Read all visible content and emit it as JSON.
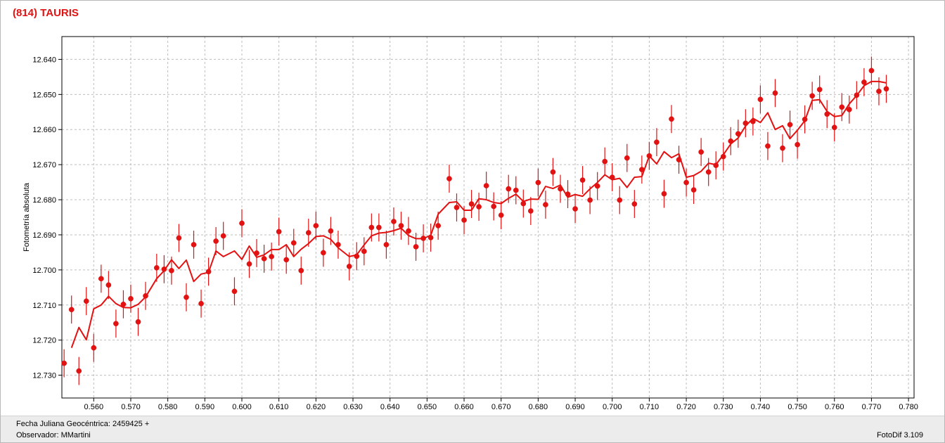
{
  "header": {
    "title": "(814) TAURIS"
  },
  "footer": {
    "date_line": "Fecha Juliana Geocéntrica: 2459425 +",
    "observer_line": "Observador: MMartini",
    "software": "FotoDif 3.109"
  },
  "colors": {
    "series": "#e31212",
    "grid": "#bdbdbd",
    "title": "#e31212"
  },
  "chart_data": {
    "type": "scatter",
    "title": "(814) TAURIS",
    "xlabel": "",
    "ylabel": "Fotometría absoluta",
    "xlim": [
      0.5514,
      0.7815
    ],
    "ylim": [
      12.7365,
      12.6335
    ],
    "y_inverted": true,
    "grid": true,
    "legend": "none",
    "x_ticks": [
      "0.560",
      "0.570",
      "0.580",
      "0.590",
      "0.600",
      "0.610",
      "0.620",
      "0.630",
      "0.640",
      "0.650",
      "0.660",
      "0.670",
      "0.680",
      "0.690",
      "0.700",
      "0.710",
      "0.720",
      "0.730",
      "0.740",
      "0.750",
      "0.760",
      "0.770",
      "0.780"
    ],
    "y_ticks": [
      "12.640",
      "12.650",
      "12.660",
      "12.670",
      "12.680",
      "12.690",
      "12.700",
      "12.710",
      "12.720",
      "12.730"
    ],
    "error_bar": 0.004,
    "series": [
      {
        "kind": "points_with_errorbars",
        "points": [
          [
            0.552,
            12.7266
          ],
          [
            0.554,
            12.7113
          ],
          [
            0.556,
            12.7288
          ],
          [
            0.558,
            12.7089
          ],
          [
            0.56,
            12.7222
          ],
          [
            0.562,
            12.7025
          ],
          [
            0.564,
            12.7043
          ],
          [
            0.566,
            12.7153
          ],
          [
            0.568,
            12.7098
          ],
          [
            0.57,
            12.7082
          ],
          [
            0.572,
            12.7148
          ],
          [
            0.574,
            12.7074
          ],
          [
            0.577,
            12.6994
          ],
          [
            0.579,
            12.6998
          ],
          [
            0.581,
            12.7002
          ],
          [
            0.583,
            12.6909
          ],
          [
            0.585,
            12.7078
          ],
          [
            0.587,
            12.6928
          ],
          [
            0.589,
            12.7096
          ],
          [
            0.591,
            12.7005
          ],
          [
            0.593,
            12.6918
          ],
          [
            0.595,
            12.6903
          ],
          [
            0.598,
            12.7061
          ],
          [
            0.6,
            12.6867
          ],
          [
            0.602,
            12.6983
          ],
          [
            0.604,
            12.6952
          ],
          [
            0.606,
            12.6968
          ],
          [
            0.608,
            12.6962
          ],
          [
            0.61,
            12.6891
          ],
          [
            0.612,
            12.6971
          ],
          [
            0.614,
            12.6923
          ],
          [
            0.616,
            12.7002
          ],
          [
            0.618,
            12.6894
          ],
          [
            0.62,
            12.6874
          ],
          [
            0.622,
            12.6951
          ],
          [
            0.624,
            12.6889
          ],
          [
            0.626,
            12.6928
          ],
          [
            0.629,
            12.699
          ],
          [
            0.631,
            12.6961
          ],
          [
            0.633,
            12.6947
          ],
          [
            0.635,
            12.6879
          ],
          [
            0.637,
            12.6879
          ],
          [
            0.639,
            12.6928
          ],
          [
            0.641,
            12.6862
          ],
          [
            0.643,
            12.6874
          ],
          [
            0.645,
            12.6889
          ],
          [
            0.647,
            12.6934
          ],
          [
            0.649,
            12.691
          ],
          [
            0.651,
            12.6908
          ],
          [
            0.653,
            12.6874
          ],
          [
            0.656,
            12.674
          ],
          [
            0.658,
            12.6822
          ],
          [
            0.66,
            12.6858
          ],
          [
            0.662,
            12.6812
          ],
          [
            0.664,
            12.682
          ],
          [
            0.666,
            12.676
          ],
          [
            0.668,
            12.6819
          ],
          [
            0.67,
            12.6844
          ],
          [
            0.672,
            12.6769
          ],
          [
            0.674,
            12.6773
          ],
          [
            0.676,
            12.6811
          ],
          [
            0.678,
            12.6832
          ],
          [
            0.68,
            12.6751
          ],
          [
            0.682,
            12.6814
          ],
          [
            0.684,
            12.6721
          ],
          [
            0.686,
            12.6769
          ],
          [
            0.688,
            12.6784
          ],
          [
            0.69,
            12.6826
          ],
          [
            0.692,
            12.6744
          ],
          [
            0.694,
            12.6801
          ],
          [
            0.696,
            12.6761
          ],
          [
            0.698,
            12.6691
          ],
          [
            0.7,
            12.6736
          ],
          [
            0.702,
            12.6801
          ],
          [
            0.704,
            12.6681
          ],
          [
            0.706,
            12.6812
          ],
          [
            0.708,
            12.6714
          ],
          [
            0.71,
            12.6675
          ],
          [
            0.712,
            12.6636
          ],
          [
            0.714,
            12.6783
          ],
          [
            0.716,
            12.657
          ],
          [
            0.718,
            12.6686
          ],
          [
            0.72,
            12.6751
          ],
          [
            0.722,
            12.6772
          ],
          [
            0.724,
            12.6664
          ],
          [
            0.726,
            12.6721
          ],
          [
            0.728,
            12.6702
          ],
          [
            0.73,
            12.6677
          ],
          [
            0.732,
            12.6633
          ],
          [
            0.734,
            12.6612
          ],
          [
            0.736,
            12.6582
          ],
          [
            0.738,
            12.6577
          ],
          [
            0.74,
            12.6514
          ],
          [
            0.742,
            12.6647
          ],
          [
            0.744,
            12.6496
          ],
          [
            0.746,
            12.6653
          ],
          [
            0.748,
            12.6586
          ],
          [
            0.75,
            12.6643
          ],
          [
            0.752,
            12.6571
          ],
          [
            0.754,
            12.6504
          ],
          [
            0.756,
            12.6486
          ],
          [
            0.758,
            12.6556
          ],
          [
            0.76,
            12.6594
          ],
          [
            0.762,
            12.6536
          ],
          [
            0.764,
            12.6543
          ],
          [
            0.766,
            12.6502
          ],
          [
            0.768,
            12.6465
          ],
          [
            0.77,
            12.6432
          ],
          [
            0.772,
            12.6491
          ],
          [
            0.774,
            12.6484
          ]
        ]
      },
      {
        "kind": "line",
        "points": [
          [
            0.554,
            12.7222
          ],
          [
            0.556,
            12.7164
          ],
          [
            0.558,
            12.7199
          ],
          [
            0.56,
            12.7111
          ],
          [
            0.562,
            12.71
          ],
          [
            0.564,
            12.7075
          ],
          [
            0.566,
            12.7096
          ],
          [
            0.568,
            12.7107
          ],
          [
            0.57,
            12.7108
          ],
          [
            0.572,
            12.7098
          ],
          [
            0.574,
            12.7077
          ],
          [
            0.577,
            12.7025
          ],
          [
            0.579,
            12.7002
          ],
          [
            0.581,
            12.6971
          ],
          [
            0.583,
            12.6996
          ],
          [
            0.585,
            12.6972
          ],
          [
            0.587,
            12.7033
          ],
          [
            0.589,
            12.7012
          ],
          [
            0.591,
            12.7007
          ],
          [
            0.593,
            12.6946
          ],
          [
            0.595,
            12.6962
          ],
          [
            0.598,
            12.6946
          ],
          [
            0.6,
            12.697
          ],
          [
            0.602,
            12.6932
          ],
          [
            0.604,
            12.6964
          ],
          [
            0.606,
            12.6957
          ],
          [
            0.608,
            12.6942
          ],
          [
            0.61,
            12.6942
          ],
          [
            0.612,
            12.6928
          ],
          [
            0.614,
            12.6962
          ],
          [
            0.616,
            12.6941
          ],
          [
            0.618,
            12.6925
          ],
          [
            0.62,
            12.6905
          ],
          [
            0.622,
            12.6903
          ],
          [
            0.624,
            12.6913
          ],
          [
            0.626,
            12.6937
          ],
          [
            0.629,
            12.6962
          ],
          [
            0.631,
            12.6957
          ],
          [
            0.633,
            12.6929
          ],
          [
            0.635,
            12.6903
          ],
          [
            0.637,
            12.6895
          ],
          [
            0.639,
            12.6893
          ],
          [
            0.641,
            12.6888
          ],
          [
            0.643,
            12.6881
          ],
          [
            0.645,
            12.6902
          ],
          [
            0.647,
            12.6911
          ],
          [
            0.649,
            12.6911
          ],
          [
            0.651,
            12.6901
          ],
          [
            0.653,
            12.6841
          ],
          [
            0.656,
            12.6808
          ],
          [
            0.658,
            12.6806
          ],
          [
            0.66,
            12.683
          ],
          [
            0.662,
            12.683
          ],
          [
            0.664,
            12.6797
          ],
          [
            0.666,
            12.68
          ],
          [
            0.668,
            12.6808
          ],
          [
            0.67,
            12.6811
          ],
          [
            0.672,
            12.6796
          ],
          [
            0.674,
            12.6784
          ],
          [
            0.676,
            12.6805
          ],
          [
            0.678,
            12.6798
          ],
          [
            0.68,
            12.6799
          ],
          [
            0.682,
            12.6762
          ],
          [
            0.684,
            12.6768
          ],
          [
            0.686,
            12.6758
          ],
          [
            0.688,
            12.6793
          ],
          [
            0.69,
            12.6785
          ],
          [
            0.692,
            12.679
          ],
          [
            0.694,
            12.6769
          ],
          [
            0.696,
            12.6751
          ],
          [
            0.698,
            12.6729
          ],
          [
            0.7,
            12.6743
          ],
          [
            0.702,
            12.6739
          ],
          [
            0.704,
            12.6765
          ],
          [
            0.706,
            12.6736
          ],
          [
            0.708,
            12.6734
          ],
          [
            0.71,
            12.6675
          ],
          [
            0.712,
            12.6698
          ],
          [
            0.714,
            12.6663
          ],
          [
            0.716,
            12.668
          ],
          [
            0.718,
            12.6669
          ],
          [
            0.72,
            12.6736
          ],
          [
            0.722,
            12.6731
          ],
          [
            0.724,
            12.6719
          ],
          [
            0.726,
            12.6696
          ],
          [
            0.728,
            12.67
          ],
          [
            0.73,
            12.6672
          ],
          [
            0.732,
            12.6641
          ],
          [
            0.734,
            12.6624
          ],
          [
            0.736,
            12.659
          ],
          [
            0.738,
            12.6568
          ],
          [
            0.74,
            12.658
          ],
          [
            0.742,
            12.6552
          ],
          [
            0.744,
            12.66
          ],
          [
            0.746,
            12.6589
          ],
          [
            0.748,
            12.6626
          ],
          [
            0.75,
            12.6602
          ],
          [
            0.752,
            12.6575
          ],
          [
            0.754,
            12.6517
          ],
          [
            0.756,
            12.6515
          ],
          [
            0.758,
            12.6548
          ],
          [
            0.76,
            12.6563
          ],
          [
            0.762,
            12.656
          ],
          [
            0.764,
            12.6527
          ],
          [
            0.766,
            12.6503
          ],
          [
            0.768,
            12.6475
          ],
          [
            0.77,
            12.6463
          ],
          [
            0.772,
            12.6463
          ],
          [
            0.774,
            12.6467
          ]
        ]
      }
    ]
  }
}
